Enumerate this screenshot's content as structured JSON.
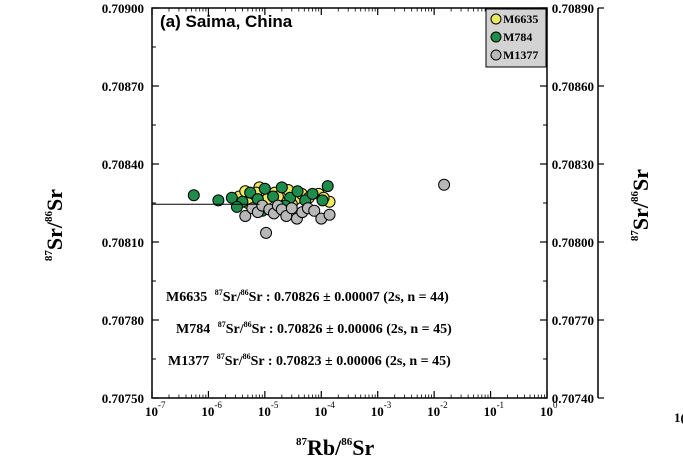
{
  "chart_data": {
    "type": "scatter",
    "title": "(a) Saima, China",
    "xlabel": "87Rb/86Sr",
    "ylabel": "87Sr/86Sr",
    "x_scale": "log",
    "xlim": [
      1e-07,
      1
    ],
    "ylim": [
      0.7075,
      0.709
    ],
    "x_tick_labels": [
      {
        "base": "10",
        "exp": "-7"
      },
      {
        "base": "10",
        "exp": "-6"
      },
      {
        "base": "10",
        "exp": "-5"
      },
      {
        "base": "10",
        "exp": "-4"
      },
      {
        "base": "10",
        "exp": "-3"
      },
      {
        "base": "10",
        "exp": "-2"
      },
      {
        "base": "10",
        "exp": "-1"
      },
      {
        "base": "10",
        "exp": "0"
      }
    ],
    "y_tick_labels": [
      "0.70900",
      "0.70870",
      "0.70840",
      "0.70810",
      "0.70780",
      "0.70750"
    ],
    "legend_position": "top-right",
    "series": [
      {
        "name": "M6635",
        "color": "#eeea60",
        "points": [
          [
            3.5e-06,
            0.708275
          ],
          [
            4.5e-06,
            0.708295
          ],
          [
            6e-06,
            0.70826
          ],
          [
            8e-06,
            0.70831
          ],
          [
            1.1e-05,
            0.708265
          ],
          [
            1.5e-05,
            0.70829
          ],
          [
            2e-05,
            0.70825
          ],
          [
            2.6e-05,
            0.7083
          ],
          [
            3.5e-05,
            0.708265
          ],
          [
            4.5e-05,
            0.708285
          ],
          [
            6e-05,
            0.70827
          ],
          [
            9e-05,
            0.708285
          ],
          [
            0.00014,
            0.708255
          ],
          [
            5e-06,
            0.70825
          ],
          [
            7e-06,
            0.70829
          ],
          [
            1.7e-05,
            0.708275
          ],
          [
            3e-05,
            0.708245
          ],
          [
            0.00011,
            0.70827
          ]
        ]
      },
      {
        "name": "M784",
        "color": "#1e8c4a",
        "points": [
          [
            5.5e-07,
            0.70828
          ],
          [
            1.5e-06,
            0.70826
          ],
          [
            2.6e-06,
            0.70827
          ],
          [
            4e-06,
            0.708255
          ],
          [
            5.5e-06,
            0.70829
          ],
          [
            7.5e-06,
            0.708265
          ],
          [
            1e-05,
            0.708305
          ],
          [
            1.4e-05,
            0.708275
          ],
          [
            2e-05,
            0.70831
          ],
          [
            2.8e-05,
            0.70827
          ],
          [
            3.8e-05,
            0.708295
          ],
          [
            5.2e-05,
            0.70826
          ],
          [
            7e-05,
            0.708285
          ],
          [
            0.000105,
            0.70826
          ],
          [
            0.00013,
            0.708315
          ],
          [
            3.2e-06,
            0.708235
          ],
          [
            9e-06,
            0.70822
          ],
          [
            2.3e-05,
            0.70824
          ]
        ]
      },
      {
        "name": "M1377",
        "color": "#b8b8b8",
        "points": [
          [
            4.5e-06,
            0.7082
          ],
          [
            6e-06,
            0.70823
          ],
          [
            7.5e-06,
            0.708215
          ],
          [
            9e-06,
            0.70824
          ],
          [
            1.05e-05,
            0.708135
          ],
          [
            1.2e-05,
            0.708225
          ],
          [
            1.45e-05,
            0.70821
          ],
          [
            1.7e-05,
            0.70824
          ],
          [
            2e-05,
            0.708225
          ],
          [
            2.4e-05,
            0.7082
          ],
          [
            3e-05,
            0.70823
          ],
          [
            3.7e-05,
            0.70819
          ],
          [
            4.6e-05,
            0.708215
          ],
          [
            5.8e-05,
            0.70823
          ],
          [
            7.5e-05,
            0.70822
          ],
          [
            0.0001,
            0.70819
          ],
          [
            0.00014,
            0.708205
          ],
          [
            0.015,
            0.70832
          ]
        ]
      }
    ],
    "annotations": [
      {
        "label": "M6635",
        "ratio": "87Sr/86Sr",
        "text": ": 0.70826 ± 0.00007 (2s, n = 44)"
      },
      {
        "label": "M784",
        "ratio": "87Sr/86Sr",
        "text": ": 0.70826 ± 0.00006 (2s, n = 45)"
      },
      {
        "label": "M1377",
        "ratio": "87Sr/86Sr",
        "text": ": 0.70823 ± 0.00006 (2s, n = 45)"
      }
    ],
    "right_panel": {
      "ylabel": "87Sr/86Sr",
      "y_tick_labels": [
        "0.70890",
        "0.70860",
        "0.70830",
        "0.70800",
        "0.70770",
        "0.70740"
      ],
      "x_tick_partial": "1("
    }
  }
}
